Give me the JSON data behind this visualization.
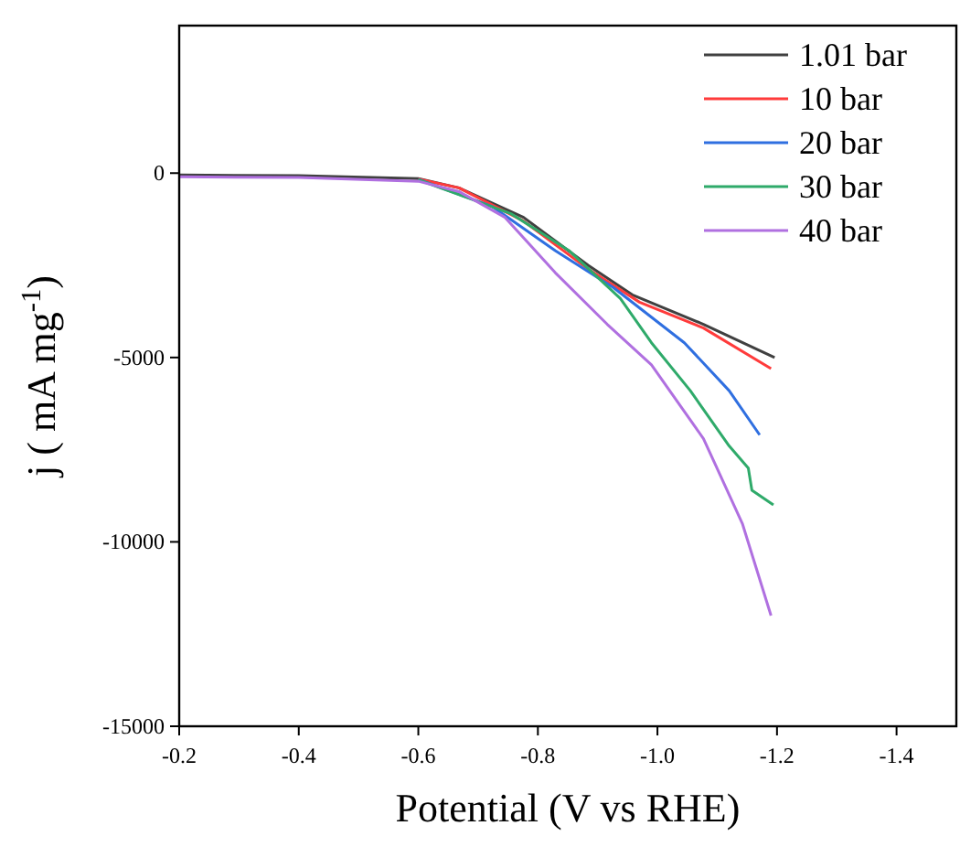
{
  "chart_data": {
    "type": "line",
    "xlabel": "Potential (V vs RHE)",
    "ylabel": "j ( mA  mg$^{-1}$)",
    "xlim": [
      -0.2,
      -1.5
    ],
    "ylim": [
      -15000,
      4000
    ],
    "xticks": [
      -0.2,
      -0.4,
      -0.6,
      -0.8,
      {
        "value": -1.0,
        "label": "-1.0"
      },
      -1.2,
      -1.4
    ],
    "yticks": [
      -15000,
      -10000,
      -5000,
      0
    ],
    "legend": "top right",
    "grid": false,
    "line_style": "solid",
    "series": [
      {
        "name": "1.01 bar",
        "color": "#404040",
        "x": [
          -0.2,
          -0.4,
          -0.6,
          -0.668,
          -0.776,
          -0.884,
          -0.958,
          -1.077,
          -1.196
        ],
        "values": [
          -50,
          -70,
          -150,
          -400,
          -1200,
          -2500,
          -3300,
          -4100,
          -5000
        ]
      },
      {
        "name": "10 bar",
        "color": "#ff3b3b",
        "x": [
          -0.6,
          -0.668,
          -0.776,
          -0.884,
          -0.97,
          -1.077,
          -1.19
        ],
        "values": [
          -160,
          -400,
          -1300,
          -2600,
          -3500,
          -4200,
          -5300
        ]
      },
      {
        "name": "20 bar",
        "color": "#2f6fe0",
        "x": [
          -0.6,
          -0.723,
          -0.829,
          -0.926,
          -1.045,
          -1.12,
          -1.171
        ],
        "values": [
          -170,
          -900,
          -2100,
          -3100,
          -4600,
          -5900,
          -7100
        ]
      },
      {
        "name": "30 bar",
        "color": "#2faa6a",
        "x": [
          -0.6,
          -0.755,
          -0.852,
          -0.938,
          -0.99,
          -1.055,
          -1.12,
          -1.152,
          -1.158,
          -1.194
        ],
        "values": [
          -180,
          -1100,
          -2100,
          -3400,
          -4600,
          -5900,
          -7400,
          -8000,
          -8600,
          -9000
        ]
      },
      {
        "name": "40 bar",
        "color": "#b070e0",
        "x": [
          -0.2,
          -0.4,
          -0.6,
          -0.668,
          -0.745,
          -0.829,
          -0.916,
          -0.99,
          -1.077,
          -1.142,
          -1.19
        ],
        "values": [
          -100,
          -120,
          -220,
          -500,
          -1200,
          -2700,
          -4100,
          -5200,
          -7200,
          -9500,
          -12000
        ]
      }
    ]
  }
}
